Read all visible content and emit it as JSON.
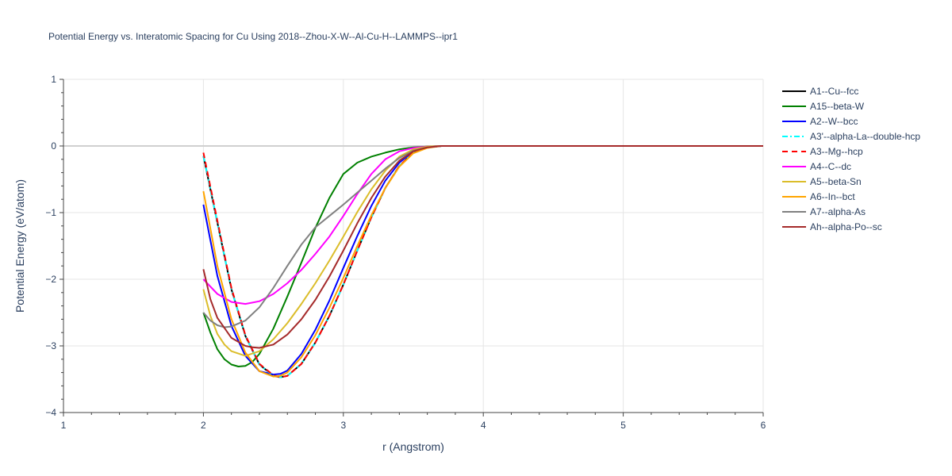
{
  "chart_data": {
    "type": "line",
    "title": "Potential Energy vs. Interatomic Spacing for Cu Using 2018--Zhou-X-W--Al-Cu-H--LAMMPS--ipr1",
    "xlabel": "r (Angstrom)",
    "ylabel": "Potential Energy (eV/atom)",
    "xlim": [
      1,
      6
    ],
    "ylim": [
      -4,
      1
    ],
    "xticks": [
      1,
      2,
      3,
      4,
      5,
      6
    ],
    "yticks": [
      1,
      0,
      -1,
      -2,
      -3,
      -4
    ],
    "xtick_labels": [
      "1",
      "2",
      "3",
      "4",
      "5",
      "6"
    ],
    "ytick_labels": [
      "1",
      "0",
      "−1",
      "−2",
      "−3",
      "−4"
    ],
    "grid": true,
    "legend_position": "right",
    "series": [
      {
        "name": "A1--Cu--fcc",
        "color": "#000000",
        "dash": "solid",
        "x": [
          2.0,
          2.1,
          2.2,
          2.3,
          2.4,
          2.5,
          2.55,
          2.6,
          2.7,
          2.8,
          2.9,
          3.0,
          3.1,
          3.2,
          3.3,
          3.4,
          3.5,
          3.6,
          3.7,
          3.8,
          4.0,
          5.0,
          6.0
        ],
        "y": [
          -0.15,
          -1.15,
          -2.15,
          -2.85,
          -3.28,
          -3.45,
          -3.47,
          -3.45,
          -3.27,
          -2.95,
          -2.55,
          -2.08,
          -1.57,
          -1.07,
          -0.63,
          -0.3,
          -0.1,
          -0.02,
          0,
          0,
          0,
          0,
          0
        ]
      },
      {
        "name": "A15--beta-W",
        "color": "#008000",
        "dash": "solid",
        "x": [
          2.0,
          2.05,
          2.1,
          2.15,
          2.2,
          2.25,
          2.3,
          2.35,
          2.4,
          2.5,
          2.6,
          2.7,
          2.8,
          2.9,
          3.0,
          3.1,
          3.2,
          3.3,
          3.4,
          3.5,
          3.6,
          3.7,
          3.8,
          4.0,
          5.0,
          6.0
        ],
        "y": [
          -2.5,
          -2.8,
          -3.05,
          -3.2,
          -3.28,
          -3.31,
          -3.3,
          -3.24,
          -3.12,
          -2.74,
          -2.26,
          -1.75,
          -1.23,
          -0.78,
          -0.42,
          -0.25,
          -0.16,
          -0.1,
          -0.05,
          -0.02,
          -0.01,
          0,
          0,
          0,
          0,
          0
        ]
      },
      {
        "name": "A2--W--bcc",
        "color": "#0000ff",
        "dash": "solid",
        "x": [
          2.0,
          2.1,
          2.2,
          2.3,
          2.4,
          2.5,
          2.55,
          2.6,
          2.7,
          2.8,
          2.9,
          3.0,
          3.1,
          3.2,
          3.3,
          3.4,
          3.5,
          3.6,
          3.7,
          3.8,
          4.0,
          5.0,
          6.0
        ],
        "y": [
          -0.88,
          -1.95,
          -2.7,
          -3.15,
          -3.38,
          -3.43,
          -3.42,
          -3.37,
          -3.12,
          -2.76,
          -2.32,
          -1.83,
          -1.35,
          -0.9,
          -0.52,
          -0.25,
          -0.08,
          -0.02,
          0,
          0,
          0,
          0,
          0
        ]
      },
      {
        "name": "A3'--alpha-La--double-hcp",
        "color": "#00ffff",
        "dash": "dashdot",
        "x": [
          2.0,
          2.1,
          2.2,
          2.3,
          2.4,
          2.5,
          2.55,
          2.6,
          2.7,
          2.8,
          2.9,
          3.0,
          3.1,
          3.2,
          3.3,
          3.4,
          3.5,
          3.6,
          3.7,
          3.8,
          4.0,
          5.0,
          6.0
        ],
        "y": [
          -0.15,
          -1.15,
          -2.15,
          -2.85,
          -3.28,
          -3.45,
          -3.47,
          -3.45,
          -3.27,
          -2.95,
          -2.55,
          -2.08,
          -1.57,
          -1.07,
          -0.63,
          -0.3,
          -0.1,
          -0.02,
          0,
          0,
          0,
          0,
          0
        ]
      },
      {
        "name": "A3--Mg--hcp",
        "color": "#ff0000",
        "dash": "dash",
        "x": [
          2.0,
          2.1,
          2.2,
          2.3,
          2.4,
          2.5,
          2.55,
          2.6,
          2.7,
          2.8,
          2.9,
          3.0,
          3.1,
          3.2,
          3.3,
          3.4,
          3.5,
          3.6,
          3.7,
          3.8,
          4.0,
          5.0,
          6.0
        ],
        "y": [
          -0.1,
          -1.12,
          -2.13,
          -2.84,
          -3.27,
          -3.44,
          -3.47,
          -3.45,
          -3.27,
          -2.95,
          -2.55,
          -2.08,
          -1.57,
          -1.07,
          -0.63,
          -0.3,
          -0.1,
          -0.02,
          0,
          0,
          0,
          0,
          0
        ]
      },
      {
        "name": "A4--C--dc",
        "color": "#ff00ff",
        "dash": "solid",
        "x": [
          2.0,
          2.1,
          2.2,
          2.3,
          2.4,
          2.5,
          2.6,
          2.7,
          2.8,
          2.9,
          3.0,
          3.1,
          3.2,
          3.3,
          3.4,
          3.5,
          3.6,
          3.7,
          3.8,
          4.0,
          5.0,
          6.0
        ],
        "y": [
          -2.0,
          -2.22,
          -2.34,
          -2.37,
          -2.33,
          -2.22,
          -2.06,
          -1.86,
          -1.62,
          -1.36,
          -1.05,
          -0.72,
          -0.42,
          -0.2,
          -0.08,
          -0.03,
          -0.01,
          0,
          0,
          0,
          0,
          0
        ]
      },
      {
        "name": "A5--beta-Sn",
        "color": "#dbbd2a",
        "dash": "solid",
        "x": [
          2.0,
          2.05,
          2.1,
          2.15,
          2.2,
          2.3,
          2.4,
          2.5,
          2.6,
          2.7,
          2.8,
          2.9,
          3.0,
          3.1,
          3.2,
          3.3,
          3.4,
          3.5,
          3.6,
          3.7,
          3.8,
          4.0,
          5.0,
          6.0
        ],
        "y": [
          -2.15,
          -2.55,
          -2.82,
          -2.98,
          -3.08,
          -3.15,
          -3.08,
          -2.9,
          -2.66,
          -2.37,
          -2.06,
          -1.72,
          -1.36,
          -0.99,
          -0.65,
          -0.37,
          -0.16,
          -0.05,
          -0.01,
          0,
          0,
          0,
          0,
          0
        ]
      },
      {
        "name": "A6--In--bct",
        "color": "#ffa500",
        "dash": "solid",
        "x": [
          2.0,
          2.1,
          2.2,
          2.3,
          2.4,
          2.5,
          2.55,
          2.6,
          2.7,
          2.8,
          2.9,
          3.0,
          3.1,
          3.2,
          3.3,
          3.4,
          3.5,
          3.6,
          3.7,
          3.8,
          4.0,
          5.0,
          6.0
        ],
        "y": [
          -0.68,
          -1.8,
          -2.6,
          -3.1,
          -3.38,
          -3.46,
          -3.45,
          -3.4,
          -3.17,
          -2.84,
          -2.43,
          -1.98,
          -1.5,
          -1.04,
          -0.63,
          -0.31,
          -0.11,
          -0.03,
          0,
          0,
          0,
          0,
          0
        ]
      },
      {
        "name": "A7--alpha-As",
        "color": "#808080",
        "dash": "solid",
        "x": [
          2.0,
          2.05,
          2.1,
          2.15,
          2.2,
          2.3,
          2.4,
          2.5,
          2.6,
          2.7,
          2.8,
          2.9,
          3.0,
          3.1,
          3.2,
          3.3,
          3.4,
          3.5,
          3.6,
          3.7,
          3.8,
          4.0,
          5.0,
          6.0
        ],
        "y": [
          -2.5,
          -2.62,
          -2.69,
          -2.72,
          -2.71,
          -2.62,
          -2.42,
          -2.13,
          -1.8,
          -1.48,
          -1.22,
          -1.05,
          -0.88,
          -0.7,
          -0.52,
          -0.34,
          -0.18,
          -0.07,
          -0.02,
          0,
          0,
          0,
          0,
          0
        ]
      },
      {
        "name": "Ah--alpha-Po--sc",
        "color": "#a52a2a",
        "dash": "solid",
        "x": [
          2.0,
          2.05,
          2.1,
          2.2,
          2.3,
          2.35,
          2.4,
          2.5,
          2.6,
          2.7,
          2.8,
          2.9,
          3.0,
          3.1,
          3.2,
          3.3,
          3.4,
          3.5,
          3.6,
          3.7,
          3.8,
          4.0,
          5.0,
          6.0
        ],
        "y": [
          -1.85,
          -2.3,
          -2.58,
          -2.88,
          -3.0,
          -3.02,
          -3.03,
          -2.98,
          -2.83,
          -2.6,
          -2.31,
          -1.96,
          -1.57,
          -1.16,
          -0.78,
          -0.46,
          -0.22,
          -0.08,
          -0.02,
          0,
          0,
          0,
          0,
          0
        ]
      }
    ]
  }
}
